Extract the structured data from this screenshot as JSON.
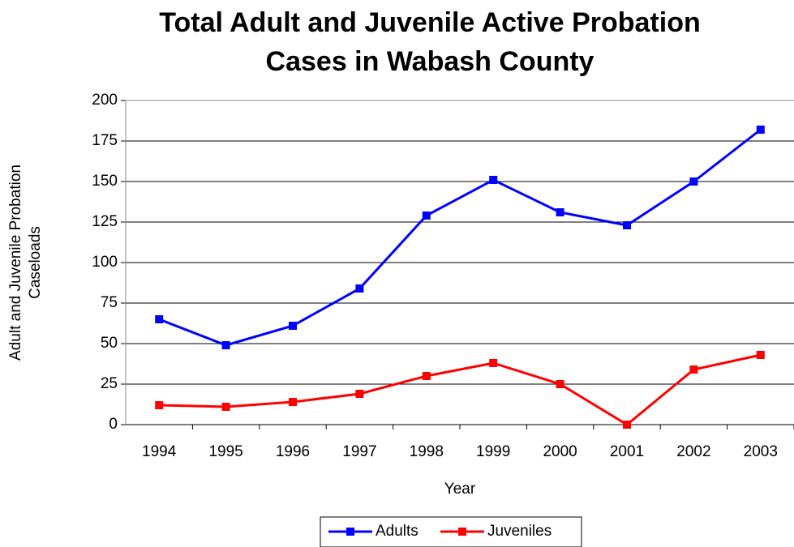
{
  "chart_data": {
    "type": "line",
    "title": [
      "Total Adult and Juvenile Active Probation",
      "Cases in Wabash County"
    ],
    "x_label": "Year",
    "y_label": [
      "Adult and Juvenile Probation",
      "Caseloads"
    ],
    "categories": [
      "1994",
      "1995",
      "1996",
      "1997",
      "1998",
      "1999",
      "2000",
      "2001",
      "2002",
      "2003"
    ],
    "series": [
      {
        "name": "Adults",
        "color": "#0000ff",
        "values": [
          65,
          49,
          61,
          84,
          129,
          151,
          131,
          123,
          150,
          182
        ]
      },
      {
        "name": "Juveniles",
        "color": "#ff0000",
        "values": [
          12,
          11,
          14,
          19,
          30,
          38,
          25,
          0,
          34,
          43
        ]
      }
    ],
    "ylim": [
      0,
      200
    ],
    "yticks": [
      0,
      25,
      50,
      75,
      100,
      125,
      150,
      175,
      200
    ],
    "grid": true,
    "legend": "bottom"
  }
}
